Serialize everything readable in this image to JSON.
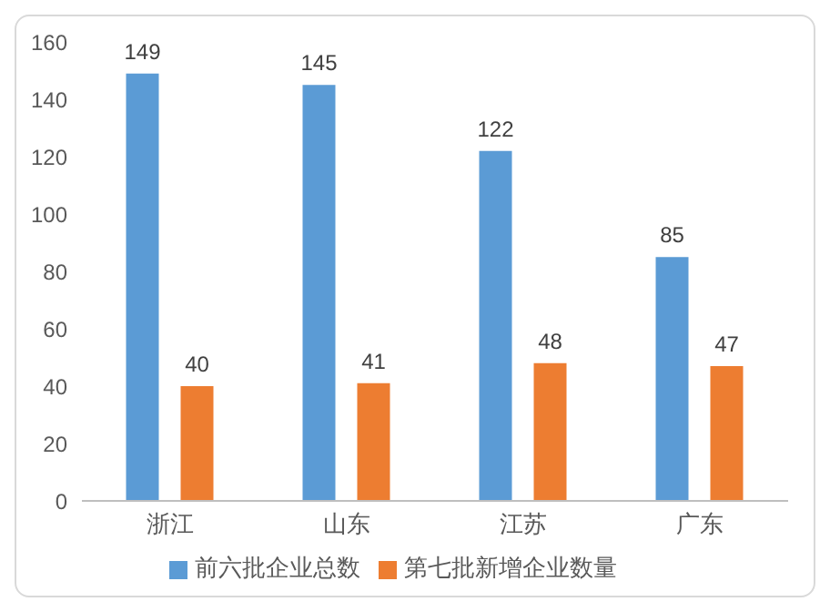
{
  "chart_data": {
    "type": "bar",
    "categories": [
      "浙江",
      "山东",
      "江苏",
      "广东"
    ],
    "series": [
      {
        "name": "前六批企业总数",
        "color": "#5b9bd5",
        "values": [
          149,
          145,
          122,
          85
        ]
      },
      {
        "name": "第七批新增企业数量",
        "color": "#ed7d31",
        "values": [
          40,
          41,
          48,
          47
        ]
      }
    ],
    "ylim": [
      0,
      160
    ],
    "yticks": [
      0,
      20,
      40,
      60,
      80,
      100,
      120,
      140,
      160
    ],
    "grid": false,
    "legend": "bottom",
    "data_labels": true
  }
}
